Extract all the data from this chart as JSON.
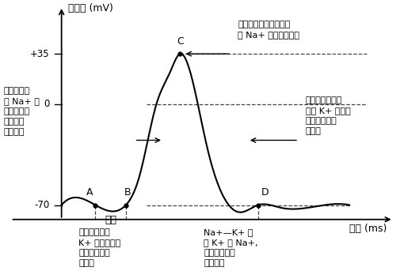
{
  "ylabel": "膜电位 (mV)",
  "xlabel": "时间 (ms)",
  "point_A": [
    1.0,
    -70
  ],
  "point_B": [
    1.9,
    -70
  ],
  "point_C": [
    3.5,
    35
  ],
  "point_D": [
    5.8,
    -70
  ],
  "left_annot": "动作电位，\n与 Na+ 内\n流有关，不\n耗能，为\n协助扩散",
  "right_top_annot_l1": "该点高低与神经纤维膜",
  "right_top_annot_l2": "外 Na+ 浓度呈正相关",
  "right_mid_annot": "恢复静息电位，\n此时 K+ 外流，\n不耗能，为协\n助扩散",
  "stim_annot": "刺激",
  "bot_left_annot": "静息电位，与\nK+ 外流有关，\n不耗能，为协\n助扩散",
  "bot_right_annot": "Na+—K+ 泵\n吸 K+ 排 Na+,\n消耗能量，为\n主动运输",
  "bg_color": "#ffffff",
  "line_color": "#000000",
  "dash_color": "#444444"
}
